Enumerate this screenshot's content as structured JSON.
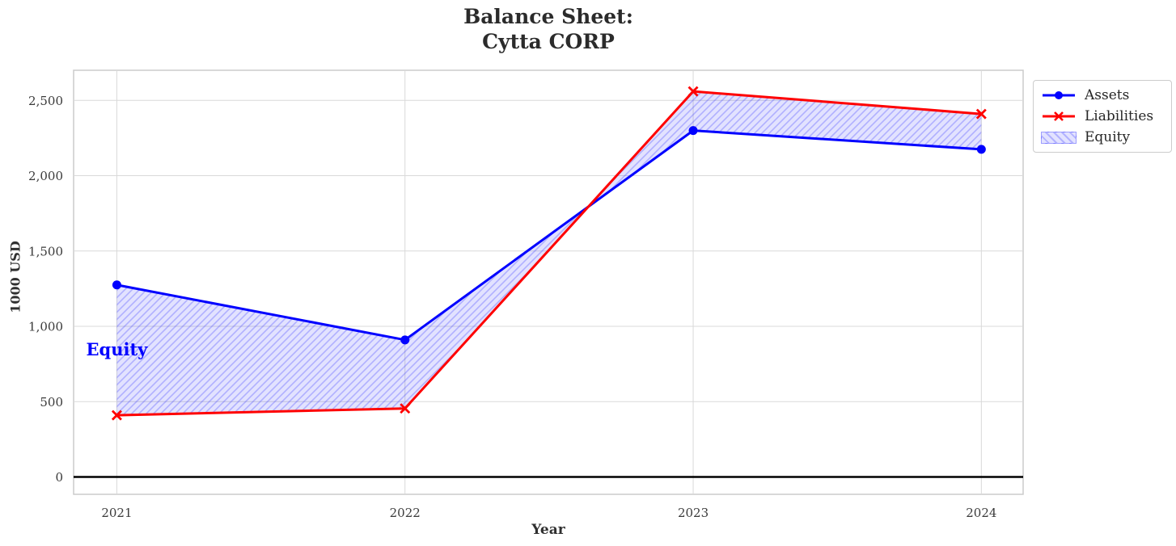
{
  "title": {
    "line1": "Balance Sheet:",
    "line2": "Cytta CORP"
  },
  "legend": {
    "items": [
      {
        "label": "Assets"
      },
      {
        "label": "Liabilities"
      },
      {
        "label": "Equity"
      }
    ]
  },
  "colors": {
    "assets": "#0000ff",
    "liabilities": "#ff0000",
    "equity_hatch": "#0000ff",
    "annotation": "#0000ff",
    "grid": "#d9d9d9",
    "spine": "#cbcbcb",
    "zero_line": "#000000",
    "text": "#2b2b2b"
  },
  "chart_data": {
    "type": "line",
    "title": "Balance Sheet:\nCytta CORP",
    "x": [
      2021,
      2022,
      2023,
      2024
    ],
    "x_tick_labels": [
      "2021",
      "2022",
      "2023",
      "2024"
    ],
    "series": [
      {
        "name": "Assets",
        "values": [
          1275,
          910,
          2300,
          2175
        ],
        "color": "#0000ff",
        "marker": "circle"
      },
      {
        "name": "Liabilities",
        "values": [
          410,
          455,
          2560,
          2410
        ],
        "color": "#ff0000",
        "marker": "x"
      }
    ],
    "fill_between": {
      "name": "Equity",
      "between": [
        "Assets",
        "Liabilities"
      ],
      "derived_values": [
        865,
        455,
        -260,
        -235
      ],
      "fill_color": "#0000ff",
      "fill_opacity": 0.115,
      "hatch": "//"
    },
    "xlabel": "Year",
    "ylabel": "1000 USD",
    "yticks": [
      0,
      500,
      1000,
      1500,
      2000,
      2500
    ],
    "y_tick_labels": [
      "0",
      "500",
      "1,000",
      "1,500",
      "2,000",
      "2,500"
    ],
    "xlim": [
      2020.85,
      2024.145
    ],
    "ylim": [
      -115,
      2700
    ],
    "grid": true,
    "zero_line": true,
    "legend_position": "upper-right-outside",
    "annotation": {
      "text": "Equity",
      "x": 2021,
      "y": 845
    }
  }
}
